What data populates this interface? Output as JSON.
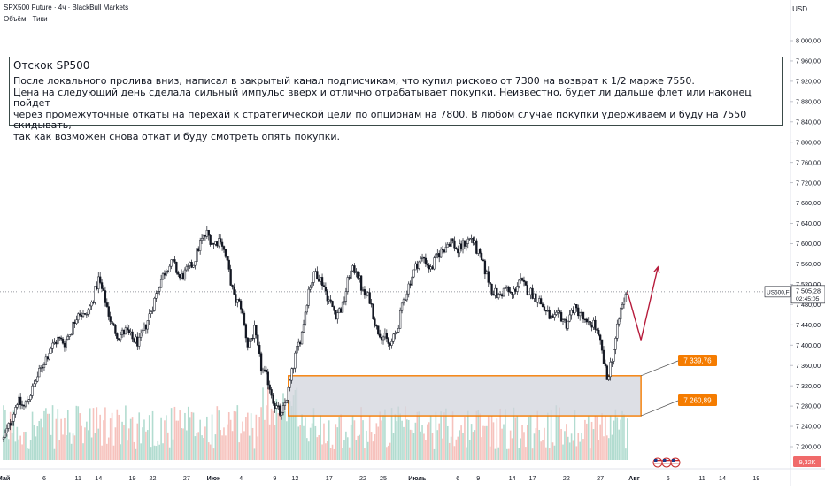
{
  "header": {
    "symbol_line": "SPX500 Future · 4ч · BlackBull Markets",
    "indicator_line": "Объём · Тики",
    "currency": "USD"
  },
  "annotation": {
    "title": "Отскок SP500",
    "lines": [
      "После локального пролива вниз, написал в закрытый канал подписчикам, что купил рисково от 7300 на возврат к 1/2 марже 7550.",
      "Цена на следующий день сделала сильный импульс вверх и отлично отрабатывает покупки. Неизвестно, будет ли дальше флет или наконец пойдет",
      "через промежуточные откаты на перехай к стратегической цели по опционам на 7800. В любом случае покупки удерживаем и буду на 7550 скидывать,",
      "так как возможен снова откат и буду смотреть опять покупки."
    ]
  },
  "price_tag": {
    "symbol": "US500,F",
    "price": "7 505,28",
    "countdown": "02:45:05"
  },
  "volume_tag": "9,32K",
  "zone_labels": {
    "upper": "7 339,76",
    "lower": "7 260,89"
  },
  "colors": {
    "candle": "#131722",
    "zone_border": "#f57c00",
    "zone_fill": "#d1d4dc",
    "label_bg": "#f57c00",
    "volume_up": "#a5d6c8",
    "volume_down": "#f5b7b1",
    "forecast": "#b71c3c",
    "price_line": "#787b86",
    "volume_tag_bg": "#f06a6a"
  },
  "chart_data": {
    "type": "candlestick",
    "y_axis": {
      "min": 7180,
      "max": 8040,
      "ticks": [
        "8 000,00",
        "7 960,00",
        "7 920,00",
        "7 880,00",
        "7 840,00",
        "7 800,00",
        "7 760,00",
        "7 720,00",
        "7 680,00",
        "7 640,00",
        "7 600,00",
        "7 560,00",
        "7 520,00",
        "7 480,00",
        "7 440,00",
        "7 400,00",
        "7 360,00",
        "7 320,00",
        "7 280,00",
        "7 240,00",
        "7 200,00"
      ],
      "tick_values": [
        8000,
        7960,
        7920,
        7880,
        7840,
        7800,
        7760,
        7720,
        7680,
        7640,
        7600,
        7560,
        7520,
        7480,
        7440,
        7400,
        7360,
        7320,
        7280,
        7240,
        7200
      ]
    },
    "x_axis": {
      "ticks": [
        "Май",
        "6",
        "11",
        "14",
        "19",
        "22",
        "27",
        "Июн",
        "4",
        "9",
        "12",
        "17",
        "22",
        "25",
        "Июль",
        "6",
        "9",
        "14",
        "17",
        "22",
        "27",
        "Авг",
        "6",
        "11",
        "14",
        "19"
      ],
      "tick_days": [
        0,
        6,
        11,
        14,
        19,
        22,
        27,
        31,
        35,
        40,
        43,
        48,
        53,
        56,
        61,
        67,
        70,
        75,
        78,
        83,
        88,
        93,
        98,
        103,
        106,
        111
      ],
      "day_range": [
        0,
        115
      ]
    },
    "price_path": [
      [
        0,
        7215
      ],
      [
        1,
        7248
      ],
      [
        2,
        7290
      ],
      [
        3,
        7278
      ],
      [
        4,
        7305
      ],
      [
        5,
        7338
      ],
      [
        6,
        7368
      ],
      [
        7,
        7395
      ],
      [
        8,
        7412
      ],
      [
        9,
        7405
      ],
      [
        10,
        7430
      ],
      [
        11,
        7468
      ],
      [
        12,
        7455
      ],
      [
        13,
        7482
      ],
      [
        14,
        7530
      ],
      [
        15,
        7488
      ],
      [
        16,
        7438
      ],
      [
        17,
        7418
      ],
      [
        18,
        7428
      ],
      [
        19,
        7412
      ],
      [
        20,
        7405
      ],
      [
        21,
        7440
      ],
      [
        22,
        7478
      ],
      [
        23,
        7522
      ],
      [
        24,
        7552
      ],
      [
        25,
        7562
      ],
      [
        26,
        7532
      ],
      [
        27,
        7545
      ],
      [
        28,
        7562
      ],
      [
        29,
        7602
      ],
      [
        30,
        7620
      ],
      [
        31,
        7598
      ],
      [
        32,
        7612
      ],
      [
        33,
        7560
      ],
      [
        34,
        7492
      ],
      [
        35,
        7478
      ],
      [
        36,
        7400
      ],
      [
        37,
        7428
      ],
      [
        38,
        7355
      ],
      [
        39,
        7330
      ],
      [
        40,
        7282
      ],
      [
        41,
        7260
      ],
      [
        42,
        7310
      ],
      [
        43,
        7378
      ],
      [
        44,
        7425
      ],
      [
        45,
        7510
      ],
      [
        46,
        7545
      ],
      [
        47,
        7525
      ],
      [
        48,
        7488
      ],
      [
        49,
        7462
      ],
      [
        50,
        7475
      ],
      [
        51,
        7540
      ],
      [
        52,
        7552
      ],
      [
        53,
        7502
      ],
      [
        54,
        7492
      ],
      [
        55,
        7432
      ],
      [
        56,
        7418
      ],
      [
        57,
        7398
      ],
      [
        58,
        7428
      ],
      [
        59,
        7488
      ],
      [
        60,
        7528
      ],
      [
        61,
        7562
      ],
      [
        62,
        7572
      ],
      [
        63,
        7548
      ],
      [
        64,
        7578
      ],
      [
        65,
        7592
      ],
      [
        66,
        7608
      ],
      [
        67,
        7585
      ],
      [
        68,
        7602
      ],
      [
        69,
        7612
      ],
      [
        70,
        7580
      ],
      [
        71,
        7548
      ],
      [
        72,
        7510
      ],
      [
        73,
        7495
      ],
      [
        74,
        7512
      ],
      [
        75,
        7498
      ],
      [
        76,
        7528
      ],
      [
        77,
        7512
      ],
      [
        78,
        7502
      ],
      [
        79,
        7488
      ],
      [
        80,
        7465
      ],
      [
        81,
        7448
      ],
      [
        82,
        7460
      ],
      [
        83,
        7442
      ],
      [
        84,
        7472
      ],
      [
        85,
        7465
      ],
      [
        86,
        7438
      ],
      [
        87,
        7445
      ],
      [
        88,
        7402
      ],
      [
        89,
        7332
      ],
      [
        90,
        7392
      ],
      [
        91,
        7470
      ],
      [
        92,
        7505
      ]
    ],
    "zone": {
      "x_start": 42,
      "x_end": 94,
      "y_high": 7339.76,
      "y_low": 7260.89
    },
    "current_price": 7505.28,
    "forecast_path": [
      [
        92,
        7505
      ],
      [
        94,
        7410
      ],
      [
        96.5,
        7554
      ]
    ]
  }
}
